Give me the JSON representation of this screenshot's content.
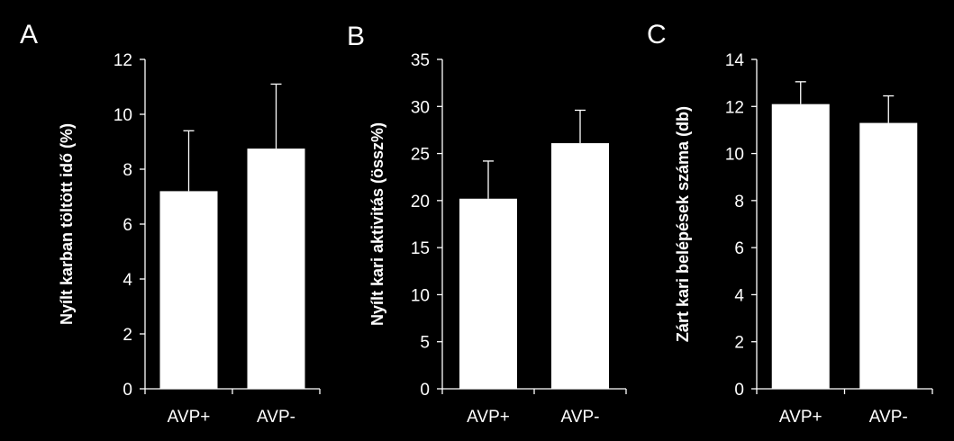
{
  "chart_data": [
    {
      "type": "bar",
      "panel_label": "A",
      "ylabel": "Nyílt karban töltött idő (%)",
      "categories": [
        "AVP+",
        "AVP-"
      ],
      "values": [
        7.2,
        8.75
      ],
      "error": [
        2.2,
        2.35
      ],
      "ylim": [
        0,
        12
      ],
      "yticks": [
        0,
        2,
        4,
        6,
        8,
        10,
        12
      ],
      "bar_color": "#ffffff",
      "axis_color": "#ffffff",
      "grid": false
    },
    {
      "type": "bar",
      "panel_label": "B",
      "ylabel": "Nyílt kari aktivitás (össz%)",
      "categories": [
        "AVP+",
        "AVP-"
      ],
      "values": [
        20.2,
        26.1
      ],
      "error": [
        4.0,
        3.5
      ],
      "ylim": [
        0,
        35
      ],
      "yticks": [
        0,
        5,
        10,
        15,
        20,
        25,
        30,
        35
      ],
      "bar_color": "#ffffff",
      "axis_color": "#ffffff",
      "grid": false
    },
    {
      "type": "bar",
      "panel_label": "C",
      "ylabel": "Zárt kari belépések száma (db)",
      "categories": [
        "AVP+",
        "AVP-"
      ],
      "values": [
        12.1,
        11.3
      ],
      "error": [
        0.95,
        1.15
      ],
      "ylim": [
        0,
        14
      ],
      "yticks": [
        0,
        2,
        4,
        6,
        8,
        10,
        12,
        14
      ],
      "bar_color": "#ffffff",
      "axis_color": "#ffffff",
      "grid": false
    }
  ]
}
